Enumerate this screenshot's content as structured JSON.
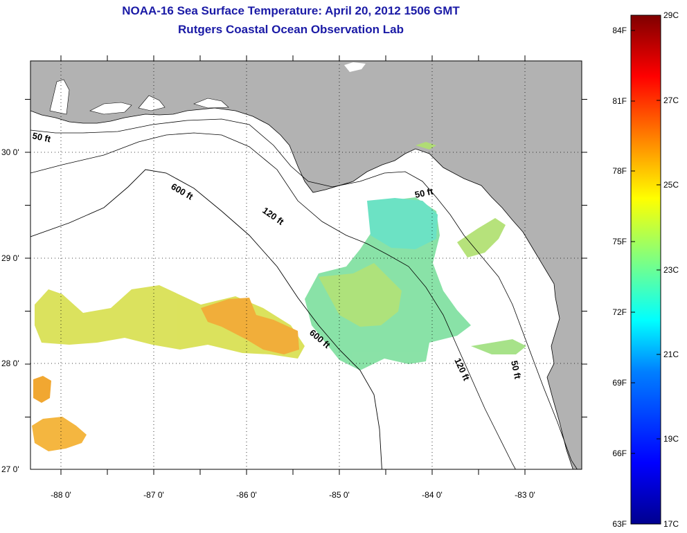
{
  "title": "NOAA-16 Sea Surface Temperature:  April 20, 2012 1506 GMT",
  "subtitle": "Rutgers Coastal Ocean Observation Lab",
  "map": {
    "lon_labels": [
      "-88 0'",
      "-87 0'",
      "-86 0'",
      "-85 0'",
      "-84 0'",
      "-83 0'"
    ],
    "lat_labels": [
      "30 0'",
      "29 0'",
      "28 0'",
      "27 0'"
    ],
    "contour_labels": {
      "c50_nw": "50 ft",
      "c600_n": "600 ft",
      "c120_n": "120 ft",
      "c50_ne": "50 ft",
      "c600_s": "600 ft",
      "c120_s": "120 ft",
      "c50_se": "50 ft"
    }
  },
  "colorbar": {
    "f_labels": [
      "84F",
      "81F",
      "78F",
      "75F",
      "72F",
      "69F",
      "66F",
      "63F"
    ],
    "c_labels": [
      "29C",
      "27C",
      "25C",
      "23C",
      "21C",
      "19C",
      "17C"
    ],
    "colors": [
      "#7f0000",
      "#ff0000",
      "#ff8000",
      "#ffff00",
      "#80ff80",
      "#00ffff",
      "#0080ff",
      "#0000ff",
      "#00008f"
    ]
  }
}
